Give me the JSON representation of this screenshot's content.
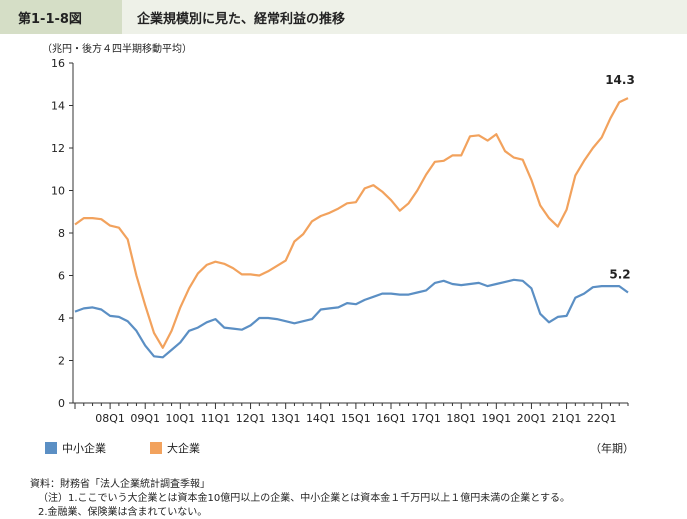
{
  "header": {
    "figure_number": "第1-1-8図",
    "title": "企業規模別に見た、経常利益の推移"
  },
  "unit_label": "（兆円・後方４四半期移動平均）",
  "x_unit_label": "（年期）",
  "notes": {
    "source": "資料：財務省「法人企業統計調査季報」",
    "note1": "（注）1.ここでいう大企業とは資本金10億円以上の企業、中小企業とは資本金１千万円以上１億円未満の企業とする。",
    "note2": "2.金融業、保険業は含まれていない。"
  },
  "colors": {
    "sme": "#5b8fc4",
    "large": "#f2a25d",
    "axis": "#333333"
  },
  "chart_data": {
    "type": "line",
    "title": "企業規模別に見た、経常利益の推移",
    "ylabel": "（兆円・後方４四半期移動平均）",
    "xlabel": "（年期）",
    "ylim": [
      0,
      16
    ],
    "y_ticks": [
      0,
      2,
      4,
      6,
      8,
      10,
      12,
      14,
      16
    ],
    "x_tick_labels": [
      "08Q1",
      "09Q1",
      "10Q1",
      "11Q1",
      "12Q1",
      "13Q1",
      "14Q1",
      "15Q1",
      "16Q1",
      "17Q1",
      "18Q1",
      "19Q1",
      "20Q1",
      "21Q1",
      "22Q1"
    ],
    "x_start": "07Q1",
    "x_end": "23Q1",
    "grid": false,
    "legend_position": "bottom-left",
    "series": [
      {
        "name": "中小企業",
        "color": "#5b8fc4",
        "end_label": "5.2",
        "values": [
          4.3,
          4.45,
          4.5,
          4.4,
          4.1,
          4.05,
          3.85,
          3.4,
          2.7,
          2.2,
          2.15,
          2.5,
          2.85,
          3.4,
          3.55,
          3.8,
          3.95,
          3.55,
          3.5,
          3.45,
          3.65,
          4.0,
          4.0,
          3.95,
          3.85,
          3.75,
          3.85,
          3.95,
          4.4,
          4.45,
          4.5,
          4.7,
          4.65,
          4.85,
          5.0,
          5.15,
          5.15,
          5.1,
          5.1,
          5.2,
          5.3,
          5.65,
          5.75,
          5.6,
          5.55,
          5.6,
          5.65,
          5.5,
          5.6,
          5.7,
          5.8,
          5.75,
          5.4,
          4.2,
          3.8,
          4.05,
          4.1,
          4.95,
          5.15,
          5.45,
          5.5,
          5.5,
          5.5,
          5.2
        ]
      },
      {
        "name": "大企業",
        "color": "#f2a25d",
        "end_label": "14.3",
        "values": [
          8.4,
          8.7,
          8.7,
          8.65,
          8.35,
          8.25,
          7.7,
          6.0,
          4.6,
          3.3,
          2.6,
          3.4,
          4.5,
          5.4,
          6.1,
          6.5,
          6.65,
          6.55,
          6.35,
          6.05,
          6.05,
          6.0,
          6.2,
          6.45,
          6.7,
          7.6,
          7.95,
          8.55,
          8.8,
          8.95,
          9.15,
          9.4,
          9.45,
          10.1,
          10.25,
          9.95,
          9.55,
          9.05,
          9.4,
          10.0,
          10.75,
          11.35,
          11.4,
          11.65,
          11.65,
          12.55,
          12.6,
          12.35,
          12.65,
          11.85,
          11.55,
          11.45,
          10.5,
          9.3,
          8.7,
          8.3,
          9.1,
          10.7,
          11.4,
          12.0,
          12.5,
          13.4,
          14.15,
          14.35
        ]
      }
    ]
  }
}
